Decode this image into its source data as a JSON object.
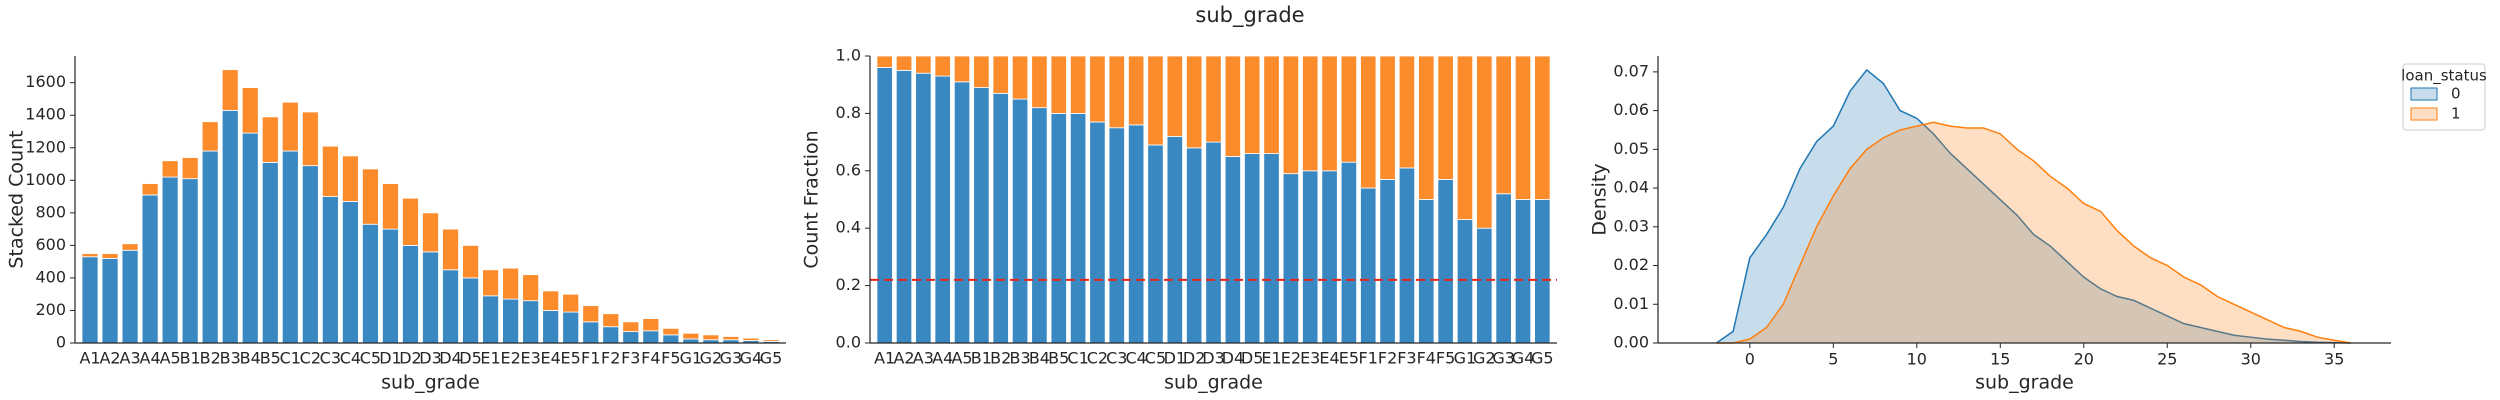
{
  "title": "sub_grade",
  "chart_data": [
    {
      "type": "bar",
      "stacked": true,
      "xlabel": "sub_grade",
      "ylabel": "Stacked Count",
      "categories": [
        "A1",
        "A2",
        "A3",
        "A4",
        "A5",
        "B1",
        "B2",
        "B3",
        "B4",
        "B5",
        "C1",
        "C2",
        "C3",
        "C4",
        "C5",
        "D1",
        "D2",
        "D3",
        "D4",
        "D5",
        "E1",
        "E2",
        "E3",
        "E4",
        "E5",
        "F1",
        "F2",
        "F3",
        "F4",
        "F5",
        "G1",
        "G2",
        "G3",
        "G4",
        "G5"
      ],
      "series": [
        {
          "name": "0",
          "color": "#3a88c1",
          "values": [
            530,
            520,
            570,
            910,
            1020,
            1010,
            1180,
            1430,
            1290,
            1110,
            1180,
            1090,
            900,
            870,
            730,
            700,
            600,
            560,
            450,
            400,
            290,
            270,
            260,
            200,
            190,
            130,
            100,
            70,
            75,
            50,
            25,
            20,
            20,
            15,
            10
          ]
        },
        {
          "name": "1",
          "color": "#fb8b2b",
          "values": [
            20,
            30,
            40,
            70,
            100,
            130,
            180,
            250,
            280,
            280,
            300,
            330,
            310,
            280,
            340,
            280,
            290,
            240,
            250,
            200,
            160,
            190,
            160,
            120,
            110,
            100,
            80,
            60,
            75,
            40,
            35,
            30,
            20,
            15,
            10
          ]
        }
      ],
      "ylim": [
        0,
        1764
      ],
      "yticks": [
        0,
        200,
        400,
        600,
        800,
        1000,
        1200,
        1400,
        1600
      ]
    },
    {
      "type": "bar",
      "stacked": true,
      "xlabel": "sub_grade",
      "ylabel": "Count Fraction",
      "categories": [
        "A1",
        "A2",
        "A3",
        "A4",
        "A5",
        "B1",
        "B2",
        "B3",
        "B4",
        "B5",
        "C1",
        "C2",
        "C3",
        "C4",
        "C5",
        "D1",
        "D2",
        "D3",
        "D4",
        "D5",
        "E1",
        "E2",
        "E3",
        "E4",
        "E5",
        "F1",
        "F2",
        "F3",
        "F4",
        "F5",
        "G1",
        "G2",
        "G3",
        "G4",
        "G5"
      ],
      "series": [
        {
          "name": "0",
          "color": "#3a88c1",
          "values": [
            0.96,
            0.95,
            0.94,
            0.93,
            0.91,
            0.89,
            0.87,
            0.85,
            0.82,
            0.8,
            0.8,
            0.77,
            0.75,
            0.76,
            0.69,
            0.72,
            0.68,
            0.7,
            0.65,
            0.66,
            0.66,
            0.59,
            0.6,
            0.6,
            0.63,
            0.54,
            0.57,
            0.61,
            0.5,
            0.57,
            0.43,
            0.4,
            0.52,
            0.5,
            0.5
          ]
        },
        {
          "name": "1",
          "color": "#fb8b2b",
          "values": [
            0.04,
            0.05,
            0.06,
            0.07,
            0.09,
            0.11,
            0.13,
            0.15,
            0.18,
            0.2,
            0.2,
            0.23,
            0.25,
            0.24,
            0.31,
            0.28,
            0.32,
            0.3,
            0.35,
            0.34,
            0.34,
            0.41,
            0.4,
            0.4,
            0.37,
            0.46,
            0.43,
            0.39,
            0.5,
            0.43,
            0.57,
            0.6,
            0.48,
            0.5,
            0.5
          ]
        }
      ],
      "hline": 0.22,
      "hline_color": "#e8231a",
      "ylim": [
        0,
        1
      ],
      "yticks": [
        {
          "value": 0,
          "label": "0.0"
        },
        {
          "value": 0.2,
          "label": "0.2"
        },
        {
          "value": 0.4,
          "label": "0.4"
        },
        {
          "value": 0.6,
          "label": "0.6"
        },
        {
          "value": 0.8,
          "label": "0.8"
        },
        {
          "value": 1,
          "label": "1.0"
        }
      ]
    },
    {
      "type": "area",
      "xlabel": "sub_grade",
      "ylabel": "Density",
      "legend_title": "loan_status",
      "legend": "upper right",
      "x": [
        -2,
        -1,
        0,
        1,
        2,
        3,
        4,
        5,
        6,
        7,
        8,
        9,
        10,
        11,
        12,
        13,
        14,
        15,
        16,
        17,
        18,
        19,
        20,
        21,
        22,
        23,
        24,
        25,
        26,
        27,
        28,
        29,
        30,
        31,
        32,
        33,
        34,
        35,
        36
      ],
      "series": [
        {
          "name": "0",
          "color": "#1f77b4",
          "values": [
            0,
            0.003,
            0.022,
            0.028,
            0.035,
            0.045,
            0.052,
            0.056,
            0.065,
            0.0705,
            0.067,
            0.06,
            0.058,
            0.054,
            0.049,
            0.045,
            0.041,
            0.037,
            0.033,
            0.028,
            0.025,
            0.021,
            0.017,
            0.014,
            0.012,
            0.011,
            0.009,
            0.007,
            0.005,
            0.004,
            0.003,
            0.002,
            0.0015,
            0.001,
            0.0007,
            0.0004,
            0.0002,
            0.0001,
            0
          ]
        },
        {
          "name": "1",
          "color": "#ff7f0e",
          "values": [
            0,
            0,
            0.001,
            0.004,
            0.01,
            0.02,
            0.03,
            0.038,
            0.045,
            0.05,
            0.053,
            0.055,
            0.056,
            0.057,
            0.056,
            0.0555,
            0.0555,
            0.054,
            0.05,
            0.047,
            0.043,
            0.04,
            0.036,
            0.034,
            0.029,
            0.025,
            0.022,
            0.02,
            0.017,
            0.015,
            0.012,
            0.01,
            0.008,
            0.006,
            0.004,
            0.003,
            0.0015,
            0.0007,
            0
          ]
        }
      ],
      "xlim": [
        -5.5,
        38.4
      ],
      "xticks": [
        0,
        5,
        10,
        15,
        20,
        25,
        30,
        35
      ],
      "ylim": [
        0,
        0.0741
      ],
      "yticks": [
        {
          "value": 0,
          "label": "0.00"
        },
        {
          "value": 0.01,
          "label": "0.01"
        },
        {
          "value": 0.02,
          "label": "0.02"
        },
        {
          "value": 0.03,
          "label": "0.03"
        },
        {
          "value": 0.04,
          "label": "0.04"
        },
        {
          "value": 0.05,
          "label": "0.05"
        },
        {
          "value": 0.06,
          "label": "0.06"
        },
        {
          "value": 0.07,
          "label": "0.07"
        }
      ]
    }
  ]
}
